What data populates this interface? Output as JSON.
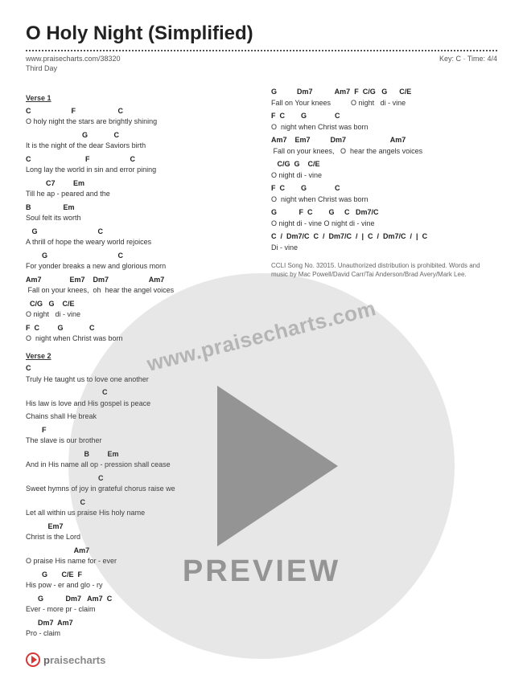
{
  "header": {
    "title": "O Holy Night (Simplified)",
    "url": "www.praisecharts.com/38320",
    "keytime": "Key: C · Time: 4/4",
    "artist": "Third Day"
  },
  "colors": {
    "text": "#333333",
    "chord": "#222222",
    "meta": "#555555",
    "watermark_fill": "rgba(120,120,120,0.18)",
    "watermark_text": "rgba(100,100,100,0.38)",
    "play_fill": "rgba(80,80,80,0.55)",
    "accent": "#d63838",
    "background": "#ffffff"
  },
  "typography": {
    "title_size": 24,
    "body_size": 9,
    "watermark_url_size": 26,
    "preview_size": 38
  },
  "left": {
    "verse1_label": "Verse 1",
    "lines": [
      {
        "c": "C                    F                     C",
        "l": "O holy night the stars are brightly shining"
      },
      {
        "c": "                            G             C",
        "l": "It is the night of the dear Saviors birth"
      },
      {
        "c": "C                           F                    C",
        "l": "Long lay the world in sin and error pining"
      },
      {
        "c": "          C7         Em",
        "l": "Till he ap - peared and the"
      },
      {
        "c": "B                Em",
        "l": "Soul felt its worth"
      },
      {
        "c": "   G                              C",
        "l": "A thrill of hope the weary world rejoices"
      },
      {
        "c": "        G                                   C",
        "l": "For yonder breaks a new and glorious morn"
      },
      {
        "c": "Am7              Em7    Dm7                    Am7",
        "l": " Fall on your knees,  oh  hear the angel voices"
      },
      {
        "c": "  C/G   G    C/E",
        "l": "O night   di - vine"
      },
      {
        "c": "F  C         G             C",
        "l": "O  night when Christ was born"
      }
    ],
    "verse2_label": "Verse 2",
    "lines2": [
      {
        "c": "C",
        "l": "Truly He taught us to love one another"
      },
      {
        "c": "                                      C",
        "l": "His law is love and His gospel is peace"
      },
      {
        "c": "",
        "l": "Chains shall He break"
      },
      {
        "c": "        F",
        "l": "The slave is our brother"
      },
      {
        "c": "                             B         Em",
        "l": "And in His name all op - pression shall cease"
      },
      {
        "c": "                                    C",
        "l": "Sweet hymns of joy in grateful chorus raise we"
      },
      {
        "c": "                           C",
        "l": "Let all within us praise His holy name"
      },
      {
        "c": "           Em7",
        "l": "Christ is the Lord"
      },
      {
        "c": "                        Am7",
        "l": "O praise His name for - ever"
      },
      {
        "c": "        G       C/E  F",
        "l": "His pow - er and glo - ry"
      },
      {
        "c": "      G           Dm7   Am7  C",
        "l": "Ever - more pr - claim"
      },
      {
        "c": "      Dm7  Am7",
        "l": "Pro - claim"
      }
    ]
  },
  "right": {
    "lines": [
      {
        "c": "G          Dm7           Am7  F  C/G   G      C/E",
        "l": "Fall on Your knees          O night   di - vine"
      },
      {
        "c": "F  C        G              C",
        "l": "O  night when Christ was born"
      },
      {
        "c": "Am7    Em7          Dm7                      Am7",
        "l": " Fall on your knees,   O  hear the angels voices"
      },
      {
        "c": "   C/G  G    C/E",
        "l": "O night di - vine"
      },
      {
        "c": "F  C        G              C",
        "l": "O  night when Christ was born"
      },
      {
        "c": "G           F  C        G     C   Dm7/C",
        "l": "O night di - vine O night di - vine"
      },
      {
        "c": "C  /  Dm7/C  C  /  Dm7/C  /  |  C  /  Dm7/C  /  |  C",
        "l": "Di - vine"
      }
    ],
    "ccli": "CCLI Song No. 32015. Unauthorized distribution is prohibited. Words and music by Mac Powell/David Carr/Tai Anderson/Brad Avery/Mark Lee."
  },
  "watermark": {
    "url": "www.praisecharts.com",
    "preview": "PREVIEW"
  },
  "footer": {
    "brand_prefix": "p",
    "brand_rest": "raisecharts"
  }
}
